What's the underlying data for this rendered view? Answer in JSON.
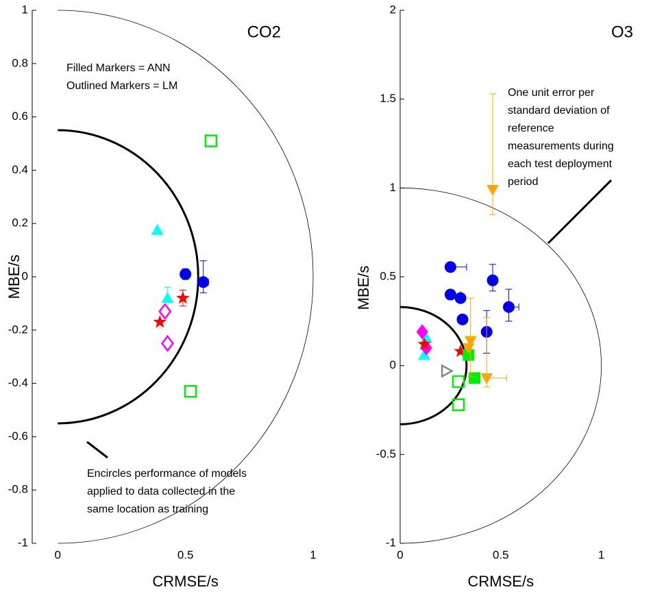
{
  "chart_data": [
    {
      "type": "scatter",
      "title": "CO2",
      "xlabel": "CRMSE/s",
      "ylabel": "MBE/s",
      "xlim": [
        -0.1,
        1.0
      ],
      "ylim": [
        -1,
        1
      ],
      "xticks": [
        0,
        0.5,
        1
      ],
      "yticks": [
        -1,
        -0.8,
        -0.6,
        -0.4,
        -0.2,
        0,
        0.2,
        0.4,
        0.6,
        0.8,
        1
      ],
      "circles": [
        1,
        0.55
      ],
      "annotations": [
        [
          "Filled Markers = ANN",
          "Outlined Markers = LM"
        ],
        [
          "Encircles performance of models",
          "applied to data collected in the",
          "same location as training"
        ]
      ],
      "series": [
        {
          "marker": "circle",
          "color": "#0000ee",
          "filled": true,
          "x": [
            0.5,
            0.57
          ],
          "y": [
            0.01,
            -0.02
          ],
          "yerr": [
            [
              0.02,
              0.02
            ],
            [
              0.04,
              0.08
            ]
          ],
          "xerr": [
            null,
            [
              0.02,
              0.02
            ]
          ]
        },
        {
          "marker": "triangle-up",
          "color": "#00ffff",
          "filled": true,
          "x": [
            0.39,
            0.43
          ],
          "y": [
            0.175,
            -0.08
          ],
          "yerr": [
            null,
            [
              0,
              0.04
            ]
          ],
          "xerr": [
            null,
            null
          ]
        },
        {
          "marker": "star",
          "color": "#ff0000",
          "filled": true,
          "x": [
            0.4,
            0.49
          ],
          "y": [
            -0.17,
            -0.08
          ],
          "yerr": [
            null,
            [
              0.03,
              0.03
            ]
          ],
          "xerr": [
            null,
            null
          ]
        },
        {
          "marker": "diamond",
          "color": "#ff00ff",
          "filled": false,
          "x": [
            0.42,
            0.43
          ],
          "y": [
            -0.13,
            -0.25
          ]
        },
        {
          "marker": "square",
          "color": "#00ee00",
          "filled": false,
          "x": [
            0.6,
            0.52
          ],
          "y": [
            0.51,
            -0.43
          ]
        }
      ]
    },
    {
      "type": "scatter",
      "title": "O3",
      "xlabel": "CRMSE/s",
      "ylabel": "MBE/s",
      "xlim": [
        0,
        1.25
      ],
      "ylim": [
        -1,
        2
      ],
      "xticks": [
        0,
        0.5,
        1
      ],
      "yticks": [
        -1,
        -0.5,
        0,
        0.5,
        1,
        1.5,
        2
      ],
      "circles": [
        1,
        0.33
      ],
      "annotations": [
        [
          "One unit error per",
          "standard deviation of",
          "reference",
          "measurements during",
          "each test deployment",
          "period"
        ]
      ],
      "series": [
        {
          "marker": "circle",
          "color": "#0000ee",
          "filled": true,
          "x": [
            0.25,
            0.25,
            0.3,
            0.31,
            0.46,
            0.54,
            0.43
          ],
          "y": [
            0.555,
            0.4,
            0.38,
            0.26,
            0.48,
            0.33,
            0.19
          ],
          "yerr": [
            null,
            null,
            null,
            null,
            [
              0.06,
              0.09
            ],
            [
              0.08,
              0.1
            ],
            [
              0.12,
              0.12
            ]
          ],
          "xerr": [
            [
              0,
              0.08
            ],
            [
              0,
              0.05
            ],
            null,
            null,
            null,
            [
              0,
              0.05
            ],
            null
          ]
        },
        {
          "marker": "triangle-up",
          "color": "#00ffff",
          "filled": true,
          "x": [
            0.13,
            0.12
          ],
          "y": [
            0.155,
            0.06
          ]
        },
        {
          "marker": "diamond",
          "color": "#ff00ff",
          "filled": true,
          "x": [
            0.11,
            0.13
          ],
          "y": [
            0.19,
            0.1
          ]
        },
        {
          "marker": "star",
          "color": "#ff0000",
          "filled": true,
          "x": [
            0.12,
            0.3
          ],
          "y": [
            0.12,
            0.08
          ]
        },
        {
          "marker": "square",
          "color": "#00ee00",
          "filled": true,
          "x": [
            0.34,
            0.37
          ],
          "y": [
            0.06,
            -0.07
          ]
        },
        {
          "marker": "square",
          "color": "#00ee00",
          "filled": false,
          "x": [
            0.29,
            0.29
          ],
          "y": [
            -0.09,
            -0.22
          ]
        },
        {
          "marker": "triangle-right",
          "color": "#888888",
          "filled": false,
          "x": [
            0.23
          ],
          "y": [
            -0.03
          ]
        },
        {
          "marker": "triangle-down",
          "color": "#ffa500",
          "filled": true,
          "x": [
            0.46,
            0.35,
            0.34,
            0.43
          ],
          "y": [
            0.99,
            0.14,
            0.1,
            -0.07
          ],
          "yerr": [
            [
              0.14,
              0.54
            ],
            [
              0.2,
              0.24
            ],
            null,
            [
              0.05,
              0.34
            ]
          ],
          "xerr": [
            null,
            null,
            null,
            [
              0,
              0.1
            ]
          ]
        }
      ]
    }
  ]
}
